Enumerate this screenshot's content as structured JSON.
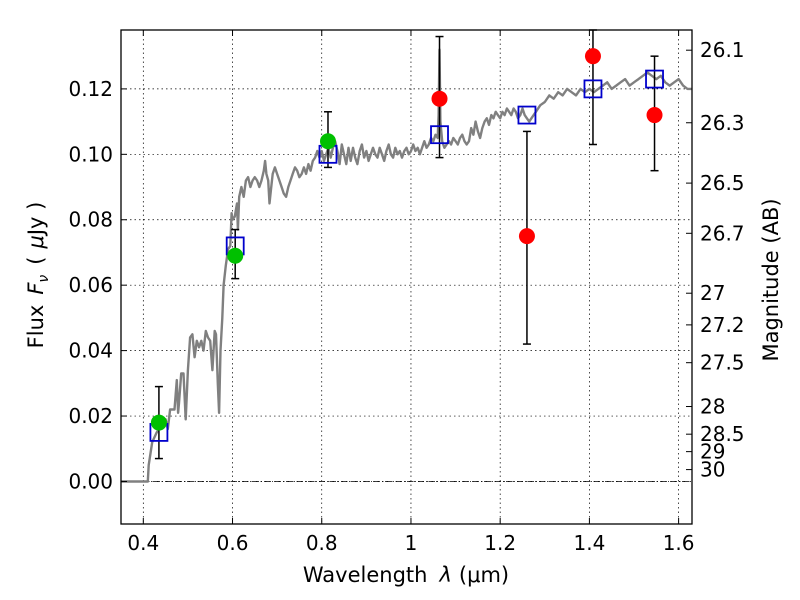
{
  "chart_data": {
    "type": "scatter",
    "title": "",
    "xlabel_main": "Wavelength",
    "xlabel_symbol": "λ",
    "xlabel_unit": "(μm)",
    "ylabel_main": "Flux",
    "ylabel_symbol": "F",
    "ylabel_subscript": "ν",
    "ylabel_unit_open": "(",
    "ylabel_unit_mu": "μ",
    "ylabel_unit_rest": "Jy )",
    "ylabel_right": "Magnitude (AB)",
    "xlim": [
      0.35,
      1.63
    ],
    "ylim": [
      -0.013,
      0.138
    ],
    "grid": true,
    "x_ticks": [
      {
        "value": 0.4,
        "label": "0.4"
      },
      {
        "value": 0.6,
        "label": "0.6"
      },
      {
        "value": 0.8,
        "label": "0.8"
      },
      {
        "value": 1.0,
        "label": "1"
      },
      {
        "value": 1.2,
        "label": "1.2"
      },
      {
        "value": 1.4,
        "label": "1.4"
      },
      {
        "value": 1.6,
        "label": "1.6"
      }
    ],
    "y_ticks": [
      {
        "value": 0.0,
        "label": "0.00"
      },
      {
        "value": 0.02,
        "label": "0.02"
      },
      {
        "value": 0.04,
        "label": "0.04"
      },
      {
        "value": 0.06,
        "label": "0.06"
      },
      {
        "value": 0.08,
        "label": "0.08"
      },
      {
        "value": 0.1,
        "label": "0.10"
      },
      {
        "value": 0.12,
        "label": "0.12"
      }
    ],
    "right_ticks": [
      {
        "label": "26.1",
        "mag": 26.1
      },
      {
        "label": "26.3",
        "mag": 26.3
      },
      {
        "label": "26.5",
        "mag": 26.5
      },
      {
        "label": "26.7",
        "mag": 26.7
      },
      {
        "label": "27",
        "mag": 27.0
      },
      {
        "label": "27.2",
        "mag": 27.2
      },
      {
        "label": "27.5",
        "mag": 27.5
      },
      {
        "label": "28",
        "mag": 28.0
      },
      {
        "label": "28.5",
        "mag": 28.5
      },
      {
        "label": "29",
        "mag": 29.0
      },
      {
        "label": "30",
        "mag": 30.0
      }
    ],
    "colors": {
      "spectrum": "#808080",
      "detected": "#00c000",
      "upper": "#ff0000",
      "model": "#0000cc",
      "errorbar": "#000000",
      "zero_line": "#000000"
    },
    "spectrum": [
      [
        0.35,
        0.0
      ],
      [
        0.38,
        0.0
      ],
      [
        0.4,
        0.0
      ],
      [
        0.41,
        0.0
      ],
      [
        0.412,
        0.005
      ],
      [
        0.42,
        0.012
      ],
      [
        0.43,
        0.015
      ],
      [
        0.44,
        0.017
      ],
      [
        0.45,
        0.019
      ],
      [
        0.455,
        0.016
      ],
      [
        0.46,
        0.022
      ],
      [
        0.47,
        0.022
      ],
      [
        0.475,
        0.031
      ],
      [
        0.478,
        0.021
      ],
      [
        0.48,
        0.024
      ],
      [
        0.485,
        0.033
      ],
      [
        0.49,
        0.033
      ],
      [
        0.495,
        0.019
      ],
      [
        0.5,
        0.034
      ],
      [
        0.505,
        0.044
      ],
      [
        0.51,
        0.045
      ],
      [
        0.515,
        0.038
      ],
      [
        0.52,
        0.043
      ],
      [
        0.525,
        0.041
      ],
      [
        0.53,
        0.043
      ],
      [
        0.535,
        0.04
      ],
      [
        0.54,
        0.046
      ],
      [
        0.545,
        0.044
      ],
      [
        0.55,
        0.043
      ],
      [
        0.555,
        0.034
      ],
      [
        0.56,
        0.046
      ],
      [
        0.563,
        0.045
      ],
      [
        0.567,
        0.03
      ],
      [
        0.57,
        0.021
      ],
      [
        0.573,
        0.04
      ],
      [
        0.577,
        0.05
      ],
      [
        0.58,
        0.06
      ],
      [
        0.585,
        0.066
      ],
      [
        0.59,
        0.071
      ],
      [
        0.595,
        0.072
      ],
      [
        0.598,
        0.082
      ],
      [
        0.6,
        0.08
      ],
      [
        0.605,
        0.081
      ],
      [
        0.61,
        0.085
      ],
      [
        0.612,
        0.077
      ],
      [
        0.615,
        0.087
      ],
      [
        0.62,
        0.09
      ],
      [
        0.625,
        0.087
      ],
      [
        0.63,
        0.092
      ],
      [
        0.635,
        0.093
      ],
      [
        0.64,
        0.09
      ],
      [
        0.645,
        0.092
      ],
      [
        0.65,
        0.093
      ],
      [
        0.655,
        0.092
      ],
      [
        0.66,
        0.09
      ],
      [
        0.665,
        0.092
      ],
      [
        0.67,
        0.095
      ],
      [
        0.673,
        0.098
      ],
      [
        0.676,
        0.094
      ],
      [
        0.68,
        0.092
      ],
      [
        0.683,
        0.085
      ],
      [
        0.686,
        0.089
      ],
      [
        0.69,
        0.094
      ],
      [
        0.695,
        0.096
      ],
      [
        0.7,
        0.094
      ],
      [
        0.705,
        0.092
      ],
      [
        0.71,
        0.09
      ],
      [
        0.715,
        0.088
      ],
      [
        0.72,
        0.087
      ],
      [
        0.725,
        0.09
      ],
      [
        0.73,
        0.092
      ],
      [
        0.735,
        0.094
      ],
      [
        0.74,
        0.096
      ],
      [
        0.745,
        0.095
      ],
      [
        0.75,
        0.093
      ],
      [
        0.755,
        0.094
      ],
      [
        0.76,
        0.096
      ],
      [
        0.765,
        0.094
      ],
      [
        0.77,
        0.097
      ],
      [
        0.775,
        0.095
      ],
      [
        0.78,
        0.098
      ],
      [
        0.785,
        0.099
      ],
      [
        0.79,
        0.101
      ],
      [
        0.795,
        0.099
      ],
      [
        0.8,
        0.101
      ],
      [
        0.805,
        0.098
      ],
      [
        0.81,
        0.1
      ],
      [
        0.815,
        0.102
      ],
      [
        0.82,
        0.099
      ],
      [
        0.825,
        0.102
      ],
      [
        0.83,
        0.104
      ],
      [
        0.835,
        0.101
      ],
      [
        0.84,
        0.097
      ],
      [
        0.845,
        0.103
      ],
      [
        0.85,
        0.1
      ],
      [
        0.855,
        0.097
      ],
      [
        0.86,
        0.102
      ],
      [
        0.865,
        0.098
      ],
      [
        0.87,
        0.102
      ],
      [
        0.875,
        0.099
      ],
      [
        0.88,
        0.097
      ],
      [
        0.885,
        0.101
      ],
      [
        0.89,
        0.103
      ],
      [
        0.895,
        0.099
      ],
      [
        0.9,
        0.101
      ],
      [
        0.905,
        0.098
      ],
      [
        0.91,
        0.1
      ],
      [
        0.915,
        0.102
      ],
      [
        0.92,
        0.1
      ],
      [
        0.925,
        0.099
      ],
      [
        0.93,
        0.102
      ],
      [
        0.935,
        0.1
      ],
      [
        0.94,
        0.098
      ],
      [
        0.945,
        0.101
      ],
      [
        0.95,
        0.103
      ],
      [
        0.955,
        0.1
      ],
      [
        0.96,
        0.099
      ],
      [
        0.965,
        0.102
      ],
      [
        0.97,
        0.1
      ],
      [
        0.975,
        0.101
      ],
      [
        0.98,
        0.099
      ],
      [
        0.985,
        0.101
      ],
      [
        0.99,
        0.102
      ],
      [
        0.995,
        0.1
      ],
      [
        1.0,
        0.101
      ],
      [
        1.005,
        0.103
      ],
      [
        1.01,
        0.101
      ],
      [
        1.015,
        0.102
      ],
      [
        1.02,
        0.1
      ],
      [
        1.025,
        0.102
      ],
      [
        1.03,
        0.104
      ],
      [
        1.035,
        0.102
      ],
      [
        1.04,
        0.103
      ],
      [
        1.045,
        0.105
      ],
      [
        1.05,
        0.104
      ],
      [
        1.055,
        0.106
      ],
      [
        1.06,
        0.105
      ],
      [
        1.062,
        0.112
      ],
      [
        1.064,
        0.132
      ],
      [
        1.066,
        0.11
      ],
      [
        1.07,
        0.104
      ],
      [
        1.075,
        0.102
      ],
      [
        1.08,
        0.103
      ],
      [
        1.085,
        0.104
      ],
      [
        1.09,
        0.103
      ],
      [
        1.095,
        0.105
      ],
      [
        1.1,
        0.104
      ],
      [
        1.105,
        0.103
      ],
      [
        1.11,
        0.105
      ],
      [
        1.115,
        0.106
      ],
      [
        1.12,
        0.104
      ],
      [
        1.125,
        0.103
      ],
      [
        1.13,
        0.104
      ],
      [
        1.135,
        0.108
      ],
      [
        1.14,
        0.106
      ],
      [
        1.145,
        0.11
      ],
      [
        1.15,
        0.107
      ],
      [
        1.155,
        0.105
      ],
      [
        1.16,
        0.108
      ],
      [
        1.165,
        0.11
      ],
      [
        1.17,
        0.111
      ],
      [
        1.175,
        0.109
      ],
      [
        1.18,
        0.112
      ],
      [
        1.185,
        0.111
      ],
      [
        1.19,
        0.113
      ],
      [
        1.195,
        0.112
      ],
      [
        1.2,
        0.111
      ],
      [
        1.205,
        0.113
      ],
      [
        1.21,
        0.112
      ],
      [
        1.215,
        0.114
      ],
      [
        1.22,
        0.113
      ],
      [
        1.225,
        0.112
      ],
      [
        1.23,
        0.114
      ],
      [
        1.235,
        0.113
      ],
      [
        1.24,
        0.111
      ],
      [
        1.245,
        0.112
      ],
      [
        1.25,
        0.114
      ],
      [
        1.255,
        0.112
      ],
      [
        1.26,
        0.111
      ],
      [
        1.265,
        0.11
      ],
      [
        1.27,
        0.111
      ],
      [
        1.28,
        0.113
      ],
      [
        1.29,
        0.115
      ],
      [
        1.3,
        0.116
      ],
      [
        1.31,
        0.118
      ],
      [
        1.32,
        0.117
      ],
      [
        1.33,
        0.119
      ],
      [
        1.34,
        0.118
      ],
      [
        1.35,
        0.12
      ],
      [
        1.36,
        0.119
      ],
      [
        1.37,
        0.118
      ],
      [
        1.38,
        0.12
      ],
      [
        1.39,
        0.119
      ],
      [
        1.4,
        0.12
      ],
      [
        1.41,
        0.119
      ],
      [
        1.42,
        0.12
      ],
      [
        1.43,
        0.121
      ],
      [
        1.44,
        0.122
      ],
      [
        1.45,
        0.12
      ],
      [
        1.46,
        0.121
      ],
      [
        1.47,
        0.122
      ],
      [
        1.48,
        0.123
      ],
      [
        1.49,
        0.121
      ],
      [
        1.5,
        0.122
      ],
      [
        1.51,
        0.123
      ],
      [
        1.52,
        0.124
      ],
      [
        1.53,
        0.125
      ],
      [
        1.54,
        0.124
      ],
      [
        1.55,
        0.123
      ],
      [
        1.56,
        0.124
      ],
      [
        1.57,
        0.122
      ],
      [
        1.58,
        0.121
      ],
      [
        1.59,
        0.122
      ],
      [
        1.6,
        0.123
      ],
      [
        1.61,
        0.121
      ],
      [
        1.62,
        0.12
      ],
      [
        1.63,
        0.12
      ]
    ],
    "detected": [
      {
        "x": 0.435,
        "y": 0.018,
        "yerr_low": 0.007,
        "yerr_high": 0.029
      },
      {
        "x": 0.606,
        "y": 0.069,
        "yerr_low": 0.062,
        "yerr_high": 0.077
      },
      {
        "x": 0.814,
        "y": 0.104,
        "yerr_low": 0.096,
        "yerr_high": 0.113
      }
    ],
    "upper": [
      {
        "x": 1.064,
        "y": 0.117,
        "yerr_low": 0.099,
        "yerr_high": 0.136
      },
      {
        "x": 1.26,
        "y": 0.075,
        "yerr_low": 0.042,
        "yerr_high": 0.107
      },
      {
        "x": 1.408,
        "y": 0.13,
        "yerr_low": 0.103,
        "yerr_high": 0.138
      },
      {
        "x": 1.546,
        "y": 0.112,
        "yerr_low": 0.095,
        "yerr_high": 0.13
      }
    ],
    "model": [
      {
        "x": 0.435,
        "y": 0.015
      },
      {
        "x": 0.606,
        "y": 0.072
      },
      {
        "x": 0.814,
        "y": 0.1
      },
      {
        "x": 1.064,
        "y": 0.106
      },
      {
        "x": 1.26,
        "y": 0.112
      },
      {
        "x": 1.408,
        "y": 0.12
      },
      {
        "x": 1.546,
        "y": 0.123
      }
    ]
  }
}
